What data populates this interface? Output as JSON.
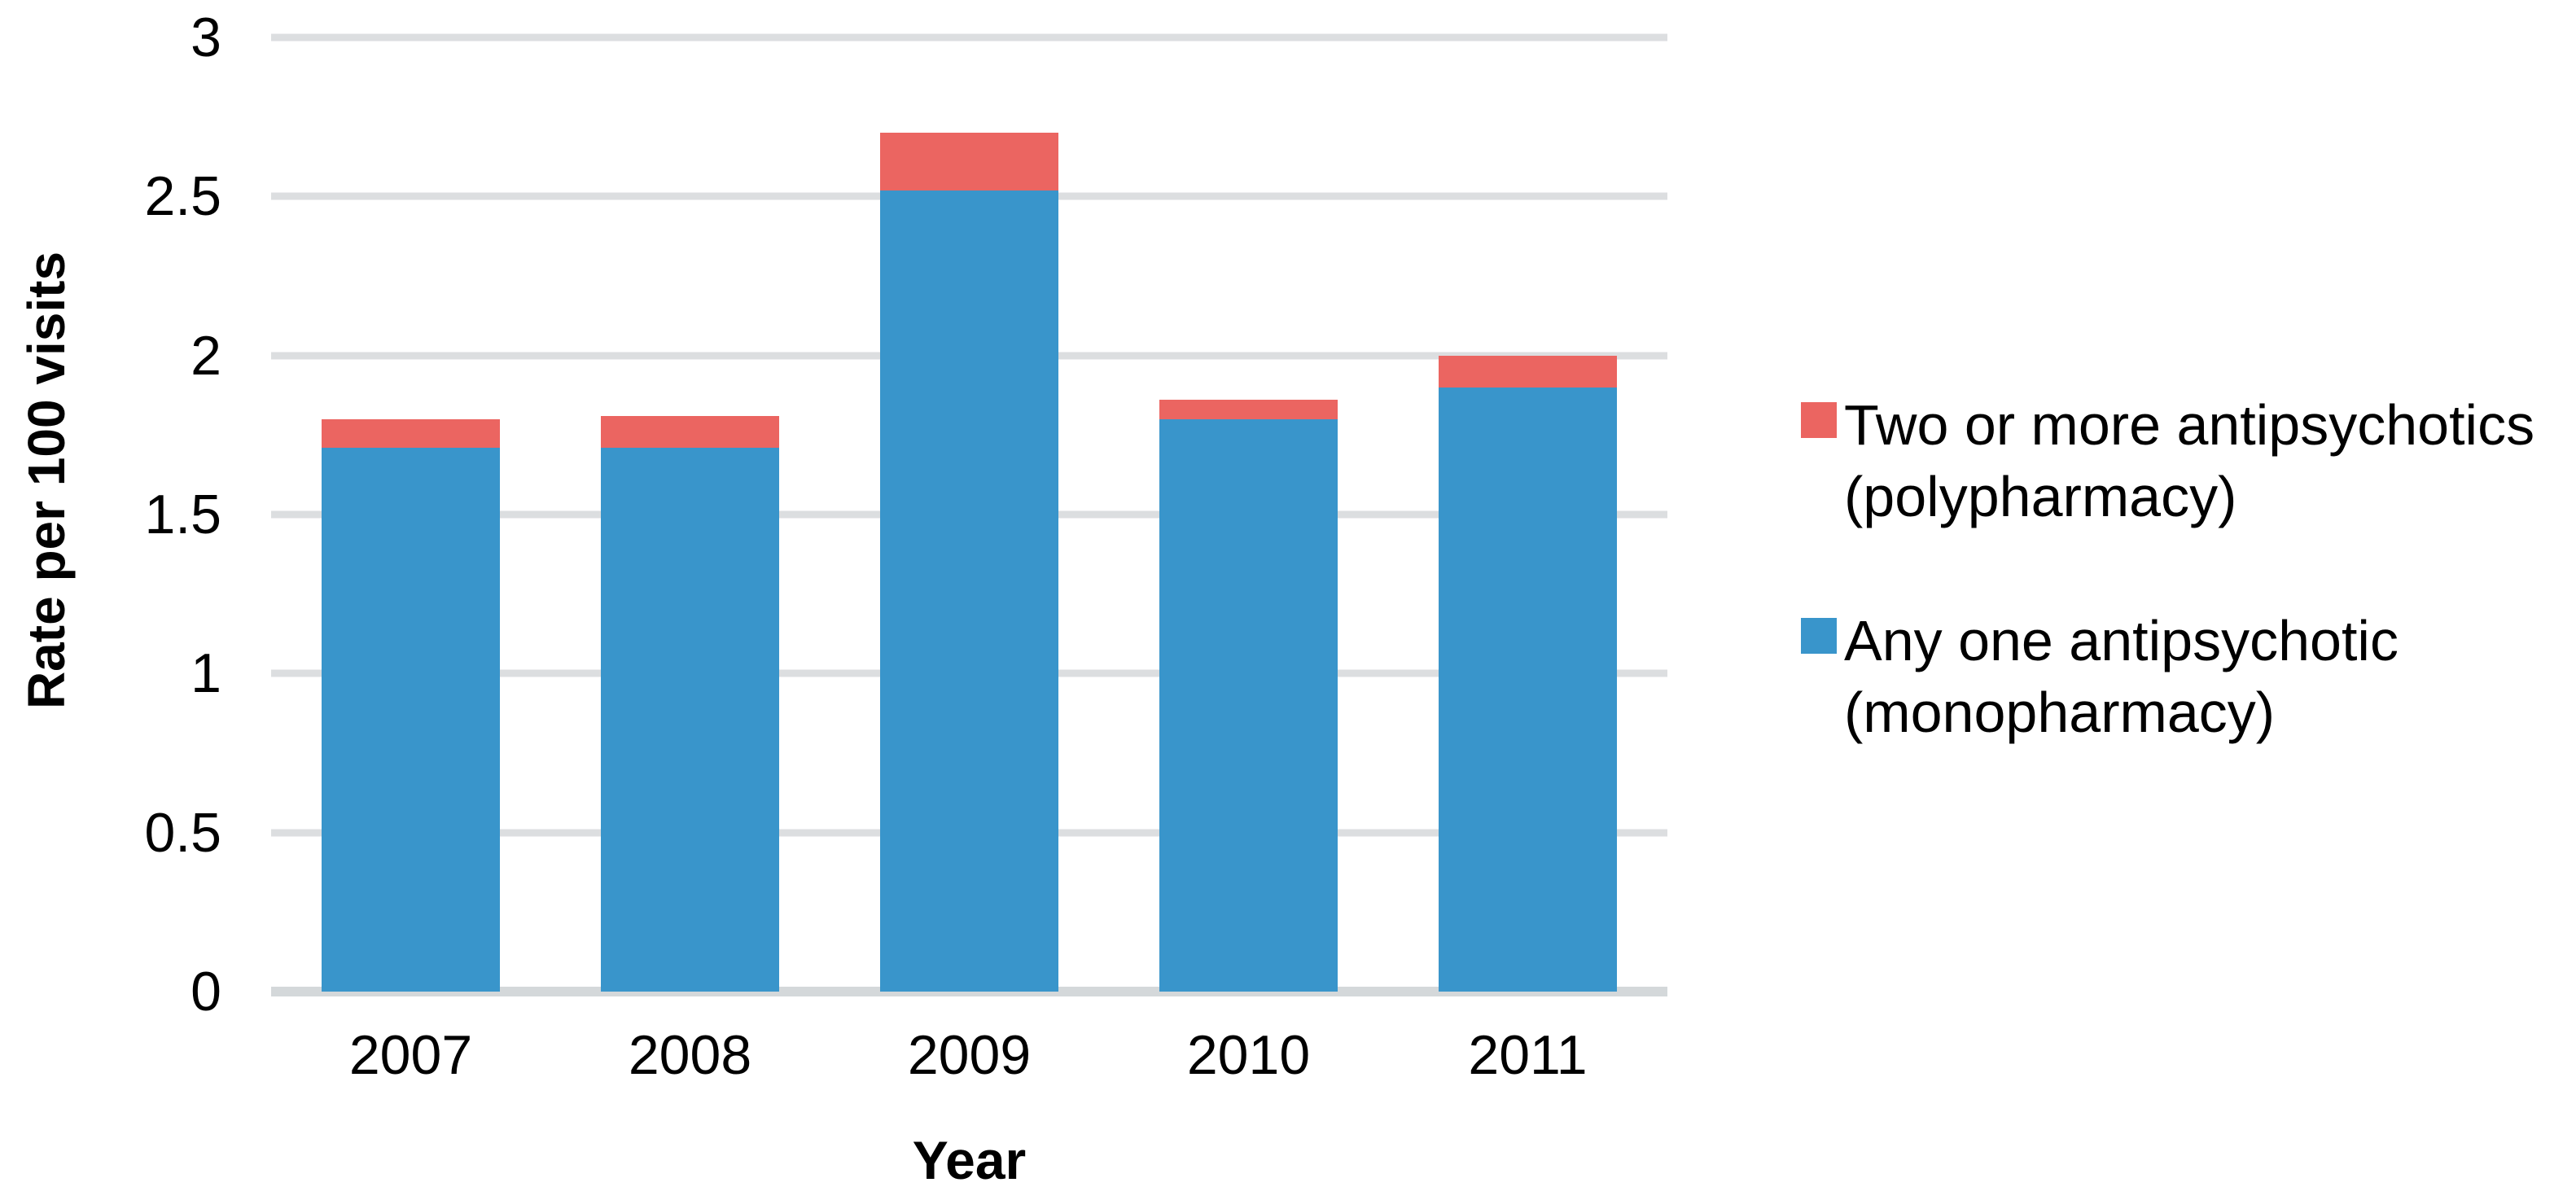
{
  "chart_data": {
    "type": "bar",
    "stacked": true,
    "title": "",
    "xlabel": "Year",
    "ylabel": "Rate per 100 visits",
    "categories": [
      "2007",
      "2008",
      "2009",
      "2010",
      "2011"
    ],
    "series": [
      {
        "key": "monopharmacy",
        "name": "Any one antipsychotic (monopharmacy)",
        "color": "#3995CB",
        "values": [
          1.71,
          1.71,
          2.52,
          1.8,
          1.9
        ]
      },
      {
        "key": "polypharmacy",
        "name": "Two or more antipsychotics (polypharmacy)",
        "color": "#EB6561",
        "values": [
          0.09,
          0.1,
          0.18,
          0.06,
          0.1
        ]
      }
    ],
    "stack_totals": [
      1.8,
      1.81,
      2.7,
      1.86,
      2.0
    ],
    "y_axis": {
      "min": 0,
      "max": 3,
      "tick_step": 0.5,
      "ticks": [
        "0",
        "0.5",
        "1",
        "1.5",
        "2",
        "2.5",
        "3"
      ]
    },
    "legend_position": "right",
    "legend": [
      {
        "key": "polypharmacy",
        "label_line1": "Two or more antipsychotics",
        "label_line2": "(polypharmacy)",
        "color": "#EB6561"
      },
      {
        "key": "monopharmacy",
        "label_line1": "Any one antipsychotic",
        "label_line2": "(monopharmacy)",
        "color": "#3995CB"
      }
    ],
    "grid": true,
    "gridline_color": "#DCDEE0",
    "baseline_color": "#D4D8DA",
    "background": "#FFFFFF",
    "text_color": "#000000"
  }
}
